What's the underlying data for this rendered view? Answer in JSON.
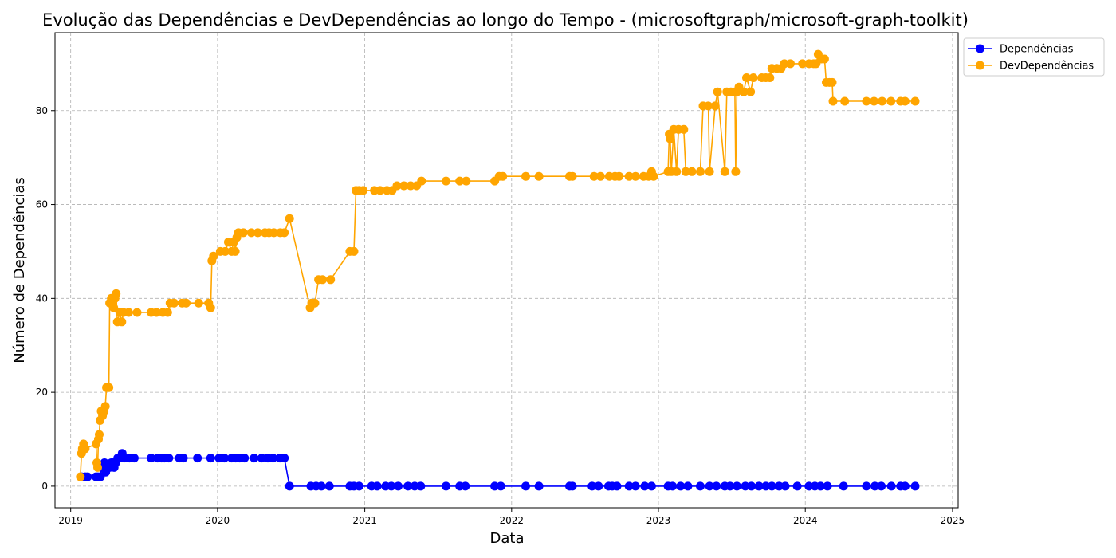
{
  "chart_data": {
    "type": "line",
    "title": "Evolução das Dependências e DevDependências ao longo do Tempo - (microsoftgraph/microsoft-graph-toolkit)",
    "xlabel": "Data",
    "ylabel": "Número de Dependências",
    "xlim": [
      "2018-11-23",
      "2025-01-15"
    ],
    "ylim": [
      -4.6,
      96.6
    ],
    "x_ticks": [
      "2019",
      "2020",
      "2021",
      "2022",
      "2023",
      "2024",
      "2025"
    ],
    "y_ticks": [
      0,
      20,
      40,
      60,
      80
    ],
    "grid": true,
    "legend_position": "upper-left outside plot",
    "series": [
      {
        "name": "Dependências",
        "color": "#0000ff",
        "marker": "circle",
        "points": [
          [
            "2019-01-28",
            2
          ],
          [
            "2019-02-06",
            2
          ],
          [
            "2019-02-12",
            2
          ],
          [
            "2019-03-05",
            2
          ],
          [
            "2019-03-10",
            2
          ],
          [
            "2019-03-16",
            2
          ],
          [
            "2019-03-18",
            4
          ],
          [
            "2019-03-22",
            4
          ],
          [
            "2019-03-26",
            5
          ],
          [
            "2019-03-29",
            3
          ],
          [
            "2019-04-03",
            4
          ],
          [
            "2019-04-08",
            4
          ],
          [
            "2019-04-12",
            5
          ],
          [
            "2019-04-16",
            5
          ],
          [
            "2019-04-19",
            4
          ],
          [
            "2019-04-23",
            5
          ],
          [
            "2019-04-28",
            6
          ],
          [
            "2019-05-03",
            6
          ],
          [
            "2019-05-09",
            7
          ],
          [
            "2019-05-14",
            6
          ],
          [
            "2019-05-27",
            6
          ],
          [
            "2019-06-08",
            6
          ],
          [
            "2019-07-20",
            6
          ],
          [
            "2019-08-05",
            6
          ],
          [
            "2019-08-15",
            6
          ],
          [
            "2019-08-22",
            6
          ],
          [
            "2019-09-02",
            6
          ],
          [
            "2019-09-28",
            6
          ],
          [
            "2019-10-08",
            6
          ],
          [
            "2019-11-12",
            6
          ],
          [
            "2019-12-15",
            6
          ],
          [
            "2020-01-05",
            6
          ],
          [
            "2020-01-18",
            6
          ],
          [
            "2020-02-05",
            6
          ],
          [
            "2020-02-15",
            6
          ],
          [
            "2020-02-25",
            6
          ],
          [
            "2020-03-08",
            6
          ],
          [
            "2020-04-01",
            6
          ],
          [
            "2020-04-20",
            6
          ],
          [
            "2020-05-05",
            6
          ],
          [
            "2020-05-18",
            6
          ],
          [
            "2020-06-04",
            6
          ],
          [
            "2020-06-15",
            6
          ],
          [
            "2020-06-28",
            0
          ],
          [
            "2020-08-20",
            0
          ],
          [
            "2020-09-02",
            0
          ],
          [
            "2020-09-15",
            0
          ],
          [
            "2020-10-05",
            0
          ],
          [
            "2020-11-25",
            0
          ],
          [
            "2020-12-05",
            0
          ],
          [
            "2020-12-18",
            0
          ],
          [
            "2021-01-18",
            0
          ],
          [
            "2021-02-01",
            0
          ],
          [
            "2021-02-22",
            0
          ],
          [
            "2021-03-08",
            0
          ],
          [
            "2021-03-25",
            0
          ],
          [
            "2021-04-18",
            0
          ],
          [
            "2021-05-05",
            0
          ],
          [
            "2021-05-20",
            0
          ],
          [
            "2021-07-22",
            0
          ],
          [
            "2021-08-25",
            0
          ],
          [
            "2021-09-08",
            0
          ],
          [
            "2021-11-20",
            0
          ],
          [
            "2021-12-05",
            0
          ],
          [
            "2022-02-05",
            0
          ],
          [
            "2022-03-10",
            0
          ],
          [
            "2022-05-25",
            0
          ],
          [
            "2022-06-01",
            0
          ],
          [
            "2022-07-20",
            0
          ],
          [
            "2022-08-05",
            0
          ],
          [
            "2022-08-30",
            0
          ],
          [
            "2022-09-08",
            0
          ],
          [
            "2022-09-20",
            0
          ],
          [
            "2022-10-20",
            0
          ],
          [
            "2022-11-05",
            0
          ],
          [
            "2022-11-28",
            0
          ],
          [
            "2022-12-15",
            0
          ],
          [
            "2023-01-25",
            0
          ],
          [
            "2023-02-05",
            0
          ],
          [
            "2023-02-25",
            0
          ],
          [
            "2023-03-15",
            0
          ],
          [
            "2023-04-15",
            0
          ],
          [
            "2023-05-08",
            0
          ],
          [
            "2023-05-25",
            0
          ],
          [
            "2023-06-15",
            0
          ],
          [
            "2023-06-28",
            0
          ],
          [
            "2023-07-15",
            0
          ],
          [
            "2023-08-05",
            0
          ],
          [
            "2023-08-20",
            0
          ],
          [
            "2023-09-08",
            0
          ],
          [
            "2023-09-25",
            0
          ],
          [
            "2023-10-10",
            0
          ],
          [
            "2023-10-28",
            0
          ],
          [
            "2023-11-12",
            0
          ],
          [
            "2023-12-12",
            0
          ],
          [
            "2024-01-10",
            0
          ],
          [
            "2024-01-25",
            0
          ],
          [
            "2024-02-08",
            0
          ],
          [
            "2024-02-25",
            0
          ],
          [
            "2024-04-05",
            0
          ],
          [
            "2024-06-01",
            0
          ],
          [
            "2024-06-22",
            0
          ],
          [
            "2024-07-08",
            0
          ],
          [
            "2024-08-02",
            0
          ],
          [
            "2024-08-25",
            0
          ],
          [
            "2024-09-05",
            0
          ],
          [
            "2024-09-30",
            0
          ]
        ]
      },
      {
        "name": "DevDependências",
        "color": "#ffa500",
        "marker": "circle",
        "points": [
          [
            "2019-01-25",
            2
          ],
          [
            "2019-01-28",
            7
          ],
          [
            "2019-01-30",
            8
          ],
          [
            "2019-02-02",
            9
          ],
          [
            "2019-02-06",
            8
          ],
          [
            "2019-03-05",
            9
          ],
          [
            "2019-03-07",
            5
          ],
          [
            "2019-03-09",
            4
          ],
          [
            "2019-03-11",
            10
          ],
          [
            "2019-03-13",
            11
          ],
          [
            "2019-03-15",
            14
          ],
          [
            "2019-03-18",
            16
          ],
          [
            "2019-03-21",
            15
          ],
          [
            "2019-03-25",
            16
          ],
          [
            "2019-03-28",
            17
          ],
          [
            "2019-03-31",
            21
          ],
          [
            "2019-04-06",
            21
          ],
          [
            "2019-04-08",
            39
          ],
          [
            "2019-04-12",
            40
          ],
          [
            "2019-04-15",
            39
          ],
          [
            "2019-04-18",
            38
          ],
          [
            "2019-04-21",
            40
          ],
          [
            "2019-04-24",
            41
          ],
          [
            "2019-04-27",
            35
          ],
          [
            "2019-05-03",
            37
          ],
          [
            "2019-05-08",
            35
          ],
          [
            "2019-05-12",
            37
          ],
          [
            "2019-05-25",
            37
          ],
          [
            "2019-06-15",
            37
          ],
          [
            "2019-07-20",
            37
          ],
          [
            "2019-08-02",
            37
          ],
          [
            "2019-08-18",
            37
          ],
          [
            "2019-08-30",
            37
          ],
          [
            "2019-09-05",
            39
          ],
          [
            "2019-09-15",
            39
          ],
          [
            "2019-10-05",
            39
          ],
          [
            "2019-10-15",
            39
          ],
          [
            "2019-11-15",
            39
          ],
          [
            "2019-12-10",
            39
          ],
          [
            "2019-12-15",
            38
          ],
          [
            "2019-12-18",
            48
          ],
          [
            "2019-12-22",
            49
          ],
          [
            "2020-01-08",
            50
          ],
          [
            "2020-01-20",
            50
          ],
          [
            "2020-01-28",
            52
          ],
          [
            "2020-02-05",
            50
          ],
          [
            "2020-02-10",
            52
          ],
          [
            "2020-02-14",
            50
          ],
          [
            "2020-02-18",
            53
          ],
          [
            "2020-02-22",
            54
          ],
          [
            "2020-03-05",
            54
          ],
          [
            "2020-03-25",
            54
          ],
          [
            "2020-04-10",
            54
          ],
          [
            "2020-04-28",
            54
          ],
          [
            "2020-05-08",
            54
          ],
          [
            "2020-05-20",
            54
          ],
          [
            "2020-06-05",
            54
          ],
          [
            "2020-06-15",
            54
          ],
          [
            "2020-06-28",
            57
          ],
          [
            "2020-08-18",
            38
          ],
          [
            "2020-08-22",
            39
          ],
          [
            "2020-08-30",
            39
          ],
          [
            "2020-09-08",
            44
          ],
          [
            "2020-09-18",
            44
          ],
          [
            "2020-10-08",
            44
          ],
          [
            "2020-11-25",
            50
          ],
          [
            "2020-12-05",
            50
          ],
          [
            "2020-12-10",
            63
          ],
          [
            "2020-12-18",
            63
          ],
          [
            "2020-12-28",
            63
          ],
          [
            "2021-01-25",
            63
          ],
          [
            "2021-02-08",
            63
          ],
          [
            "2021-02-25",
            63
          ],
          [
            "2021-03-10",
            63
          ],
          [
            "2021-03-22",
            64
          ],
          [
            "2021-04-08",
            64
          ],
          [
            "2021-04-25",
            64
          ],
          [
            "2021-05-10",
            64
          ],
          [
            "2021-05-22",
            65
          ],
          [
            "2021-07-22",
            65
          ],
          [
            "2021-08-25",
            65
          ],
          [
            "2021-09-10",
            65
          ],
          [
            "2021-11-20",
            65
          ],
          [
            "2021-12-01",
            66
          ],
          [
            "2021-12-10",
            66
          ],
          [
            "2022-02-05",
            66
          ],
          [
            "2022-03-10",
            66
          ],
          [
            "2022-05-25",
            66
          ],
          [
            "2022-06-01",
            66
          ],
          [
            "2022-07-25",
            66
          ],
          [
            "2022-08-10",
            66
          ],
          [
            "2022-09-01",
            66
          ],
          [
            "2022-09-15",
            66
          ],
          [
            "2022-09-25",
            66
          ],
          [
            "2022-10-20",
            66
          ],
          [
            "2022-11-05",
            66
          ],
          [
            "2022-11-25",
            66
          ],
          [
            "2022-12-08",
            66
          ],
          [
            "2022-12-15",
            67
          ],
          [
            "2022-12-20",
            66
          ],
          [
            "2023-01-25",
            67
          ],
          [
            "2023-01-28",
            75
          ],
          [
            "2023-01-30",
            74
          ],
          [
            "2023-02-02",
            67
          ],
          [
            "2023-02-08",
            76
          ],
          [
            "2023-02-15",
            67
          ],
          [
            "2023-02-20",
            76
          ],
          [
            "2023-03-05",
            76
          ],
          [
            "2023-03-10",
            67
          ],
          [
            "2023-03-25",
            67
          ],
          [
            "2023-04-15",
            67
          ],
          [
            "2023-04-22",
            81
          ],
          [
            "2023-05-05",
            81
          ],
          [
            "2023-05-08",
            67
          ],
          [
            "2023-05-22",
            81
          ],
          [
            "2023-05-28",
            84
          ],
          [
            "2023-06-15",
            67
          ],
          [
            "2023-06-20",
            84
          ],
          [
            "2023-06-30",
            84
          ],
          [
            "2023-07-10",
            84
          ],
          [
            "2023-07-12",
            67
          ],
          [
            "2023-07-15",
            84
          ],
          [
            "2023-07-20",
            85
          ],
          [
            "2023-08-01",
            84
          ],
          [
            "2023-08-08",
            87
          ],
          [
            "2023-08-18",
            84
          ],
          [
            "2023-08-25",
            87
          ],
          [
            "2023-09-15",
            87
          ],
          [
            "2023-09-25",
            87
          ],
          [
            "2023-10-05",
            87
          ],
          [
            "2023-10-10",
            89
          ],
          [
            "2023-10-22",
            89
          ],
          [
            "2023-11-02",
            89
          ],
          [
            "2023-11-10",
            90
          ],
          [
            "2023-11-25",
            90
          ],
          [
            "2023-12-25",
            90
          ],
          [
            "2024-01-10",
            90
          ],
          [
            "2024-01-22",
            90
          ],
          [
            "2024-01-28",
            90
          ],
          [
            "2024-02-02",
            92
          ],
          [
            "2024-02-10",
            91
          ],
          [
            "2024-02-18",
            91
          ],
          [
            "2024-02-22",
            86
          ],
          [
            "2024-03-01",
            86
          ],
          [
            "2024-03-08",
            86
          ],
          [
            "2024-03-10",
            82
          ],
          [
            "2024-04-08",
            82
          ],
          [
            "2024-06-01",
            82
          ],
          [
            "2024-06-20",
            82
          ],
          [
            "2024-07-10",
            82
          ],
          [
            "2024-08-01",
            82
          ],
          [
            "2024-08-25",
            82
          ],
          [
            "2024-09-05",
            82
          ],
          [
            "2024-09-30",
            82
          ]
        ]
      }
    ]
  }
}
